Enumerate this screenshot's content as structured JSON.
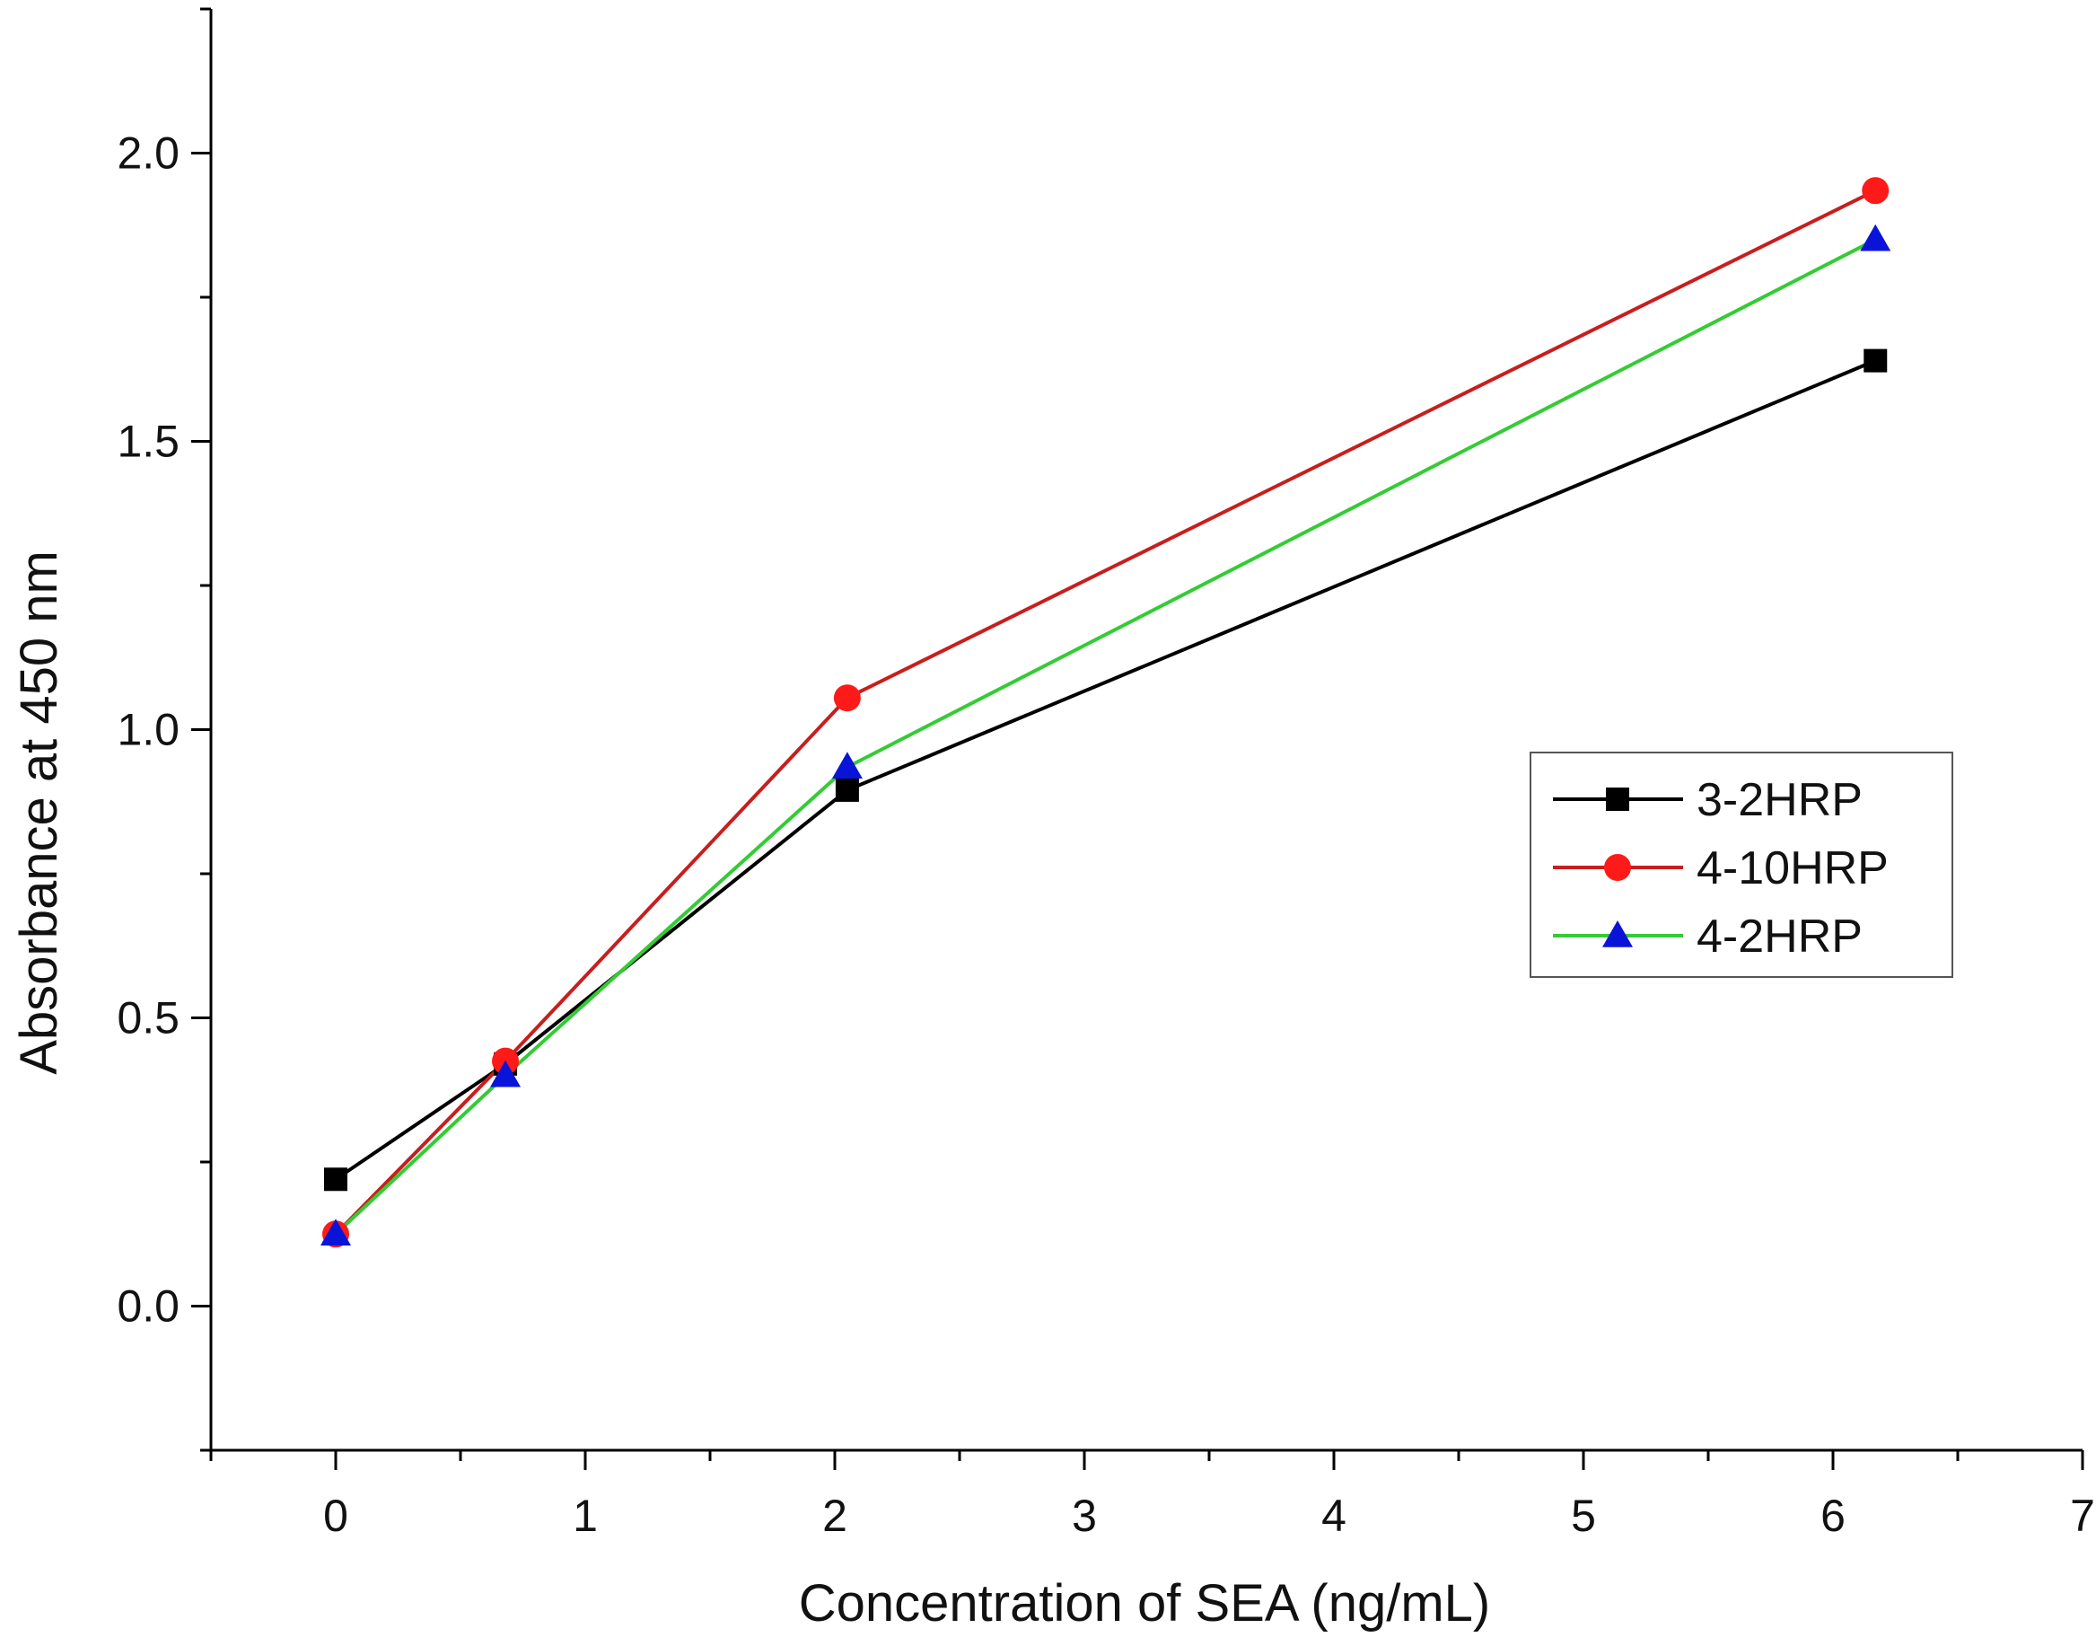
{
  "chart_data": {
    "type": "line",
    "title": "",
    "xlabel": "Concentration of SEA (ng/mL)",
    "ylabel": "Absorbance at 450 nm",
    "xlim": [
      -0.5,
      7
    ],
    "ylim": [
      -0.25,
      2.25
    ],
    "xticks": [
      0,
      1,
      2,
      3,
      4,
      5,
      6,
      7
    ],
    "xtick_labels": [
      "0",
      "1",
      "2",
      "3",
      "4",
      "5",
      "6",
      "7"
    ],
    "yticks": [
      0.0,
      0.5,
      1.0,
      1.5,
      2.0
    ],
    "ytick_labels": [
      "0.0",
      "0.5",
      "1.0",
      "1.5",
      "2.0"
    ],
    "grid": false,
    "legend_position": "right, middle",
    "x": [
      0,
      0.68,
      2.05,
      6.17
    ],
    "series": [
      {
        "name": "3-2HRP",
        "values": [
          0.22,
          0.42,
          0.895,
          1.64
        ],
        "line_color": "#000000",
        "marker_color": "#000000",
        "marker": "square"
      },
      {
        "name": "4-10HRP",
        "values": [
          0.125,
          0.425,
          1.055,
          1.935
        ],
        "line_color": "#c81e1e",
        "marker_color": "#ff1a1a",
        "marker": "circle"
      },
      {
        "name": "4-2HRP",
        "values": [
          0.125,
          0.4,
          0.935,
          1.85
        ],
        "line_color": "#33cc33",
        "marker_color": "#0a14d8",
        "marker": "triangle"
      }
    ]
  }
}
